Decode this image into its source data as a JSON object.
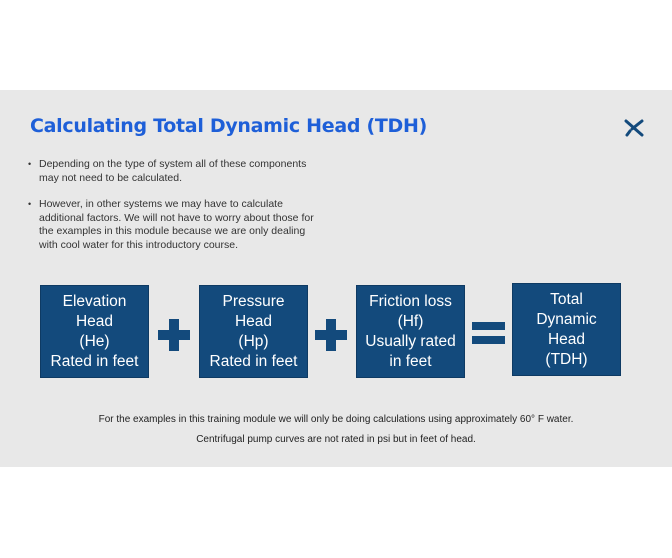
{
  "slide": {
    "title": "Calculating Total Dynamic Head (TDH)",
    "logo_icon": "x-brand-logo",
    "colors": {
      "title": "#1e5fd8",
      "box": "#134a7c",
      "background": "#e8e8e8"
    },
    "bullets": [
      "Depending on the type of system all of these components may not need to be calculated.",
      "However, in other systems we may have to calculate additional factors.  We will not have to worry about those for the examples in this module because we are only dealing with cool water for this introductory course."
    ],
    "equation": {
      "terms": [
        {
          "lines": [
            "Elevation",
            "Head",
            "(He)",
            "Rated in feet"
          ]
        },
        {
          "lines": [
            "Pressure",
            "Head",
            "(Hp)",
            "Rated in feet"
          ]
        },
        {
          "lines": [
            "Friction loss",
            "(Hf)",
            "Usually rated",
            "in feet"
          ]
        }
      ],
      "result": {
        "lines": [
          "Total",
          "Dynamic",
          "Head",
          "(TDH)"
        ]
      }
    },
    "notes": [
      "For the examples in this training module we will only be doing calculations using approximately 60° F water.",
      "Centrifugal pump curves are not rated in psi but in feet of  head."
    ]
  }
}
